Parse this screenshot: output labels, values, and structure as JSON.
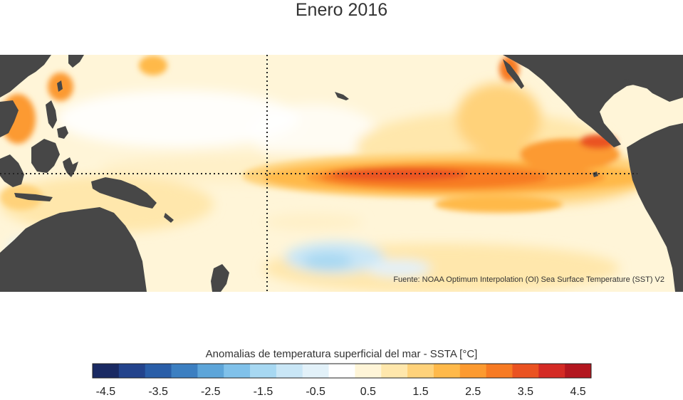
{
  "title": "Enero 2016",
  "source": "Fuente: NOAA Optimum Interpolation (OI) Sea Surface Temperature (SST) V2",
  "legend": {
    "title": "Anomalias de temperatura superficial del mar - SSTA  [°C]",
    "colors": [
      "#1a2a63",
      "#23438c",
      "#2a5ea8",
      "#3c7fc1",
      "#5da5d9",
      "#80c1ea",
      "#a7d8f2",
      "#c9e6f6",
      "#e2f1f9",
      "#ffffff",
      "#fff5d8",
      "#ffe7ac",
      "#ffd27a",
      "#ffb94a",
      "#fc9a30",
      "#f77a23",
      "#ea5221",
      "#d42a24",
      "#b3161f"
    ],
    "tick_labels": [
      "-4.5",
      "-3.5",
      "-2.5",
      "-1.5",
      "-0.5",
      "0.5",
      "1.5",
      "2.5",
      "3.5",
      "4.5"
    ]
  },
  "map": {
    "land_color": "#474747",
    "reference_lines": [
      "equator",
      "dateline"
    ]
  }
}
